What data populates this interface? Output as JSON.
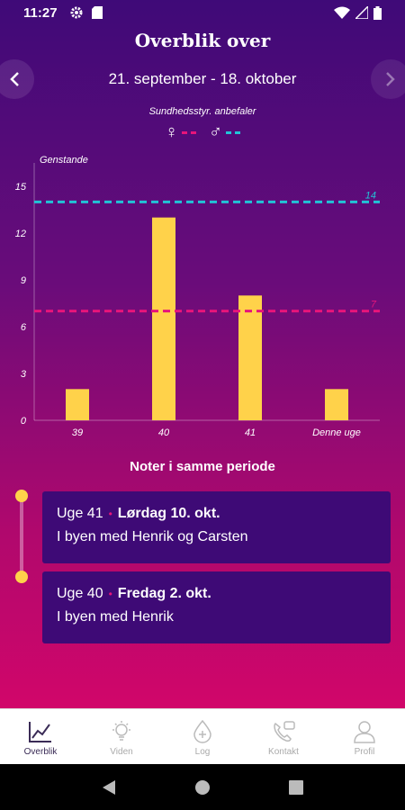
{
  "status": {
    "time": "11:27"
  },
  "header": {
    "title": "Overblik over",
    "period": "21. september - 18. oktober"
  },
  "recommendation": {
    "label": "Sundhedsstyr. anbefaler",
    "female_symbol": "♀",
    "male_symbol": "♂",
    "female_color": "#e7157a",
    "male_color": "#22c3d6"
  },
  "chart_data": {
    "type": "bar",
    "ylabel": "Genstande",
    "categories": [
      "39",
      "40",
      "41",
      "Denne uge"
    ],
    "values": [
      2,
      13,
      8,
      2
    ],
    "ylim": [
      0,
      15
    ],
    "yticks": [
      0,
      3,
      6,
      9,
      12,
      15
    ],
    "bar_color": "#ffd24a",
    "reference_lines": [
      {
        "label": "14",
        "value": 14,
        "color": "#22c3d6"
      },
      {
        "label": "7",
        "value": 7,
        "color": "#e7157a"
      }
    ]
  },
  "notes": {
    "title": "Noter i samme periode",
    "items": [
      {
        "week": "Uge 41",
        "day": "Lørdag 10. okt.",
        "text": "I byen med Henrik og Carsten"
      },
      {
        "week": "Uge 40",
        "day": "Fredag 2. okt.",
        "text": "I byen med Henrik"
      }
    ]
  },
  "tabs": [
    {
      "label": "Overblik",
      "icon": "chart-icon",
      "active": true
    },
    {
      "label": "Viden",
      "icon": "lightbulb-icon",
      "active": false
    },
    {
      "label": "Log",
      "icon": "drop-plus-icon",
      "active": false
    },
    {
      "label": "Kontakt",
      "icon": "phone-chat-icon",
      "active": false
    },
    {
      "label": "Profil",
      "icon": "person-icon",
      "active": false
    }
  ]
}
